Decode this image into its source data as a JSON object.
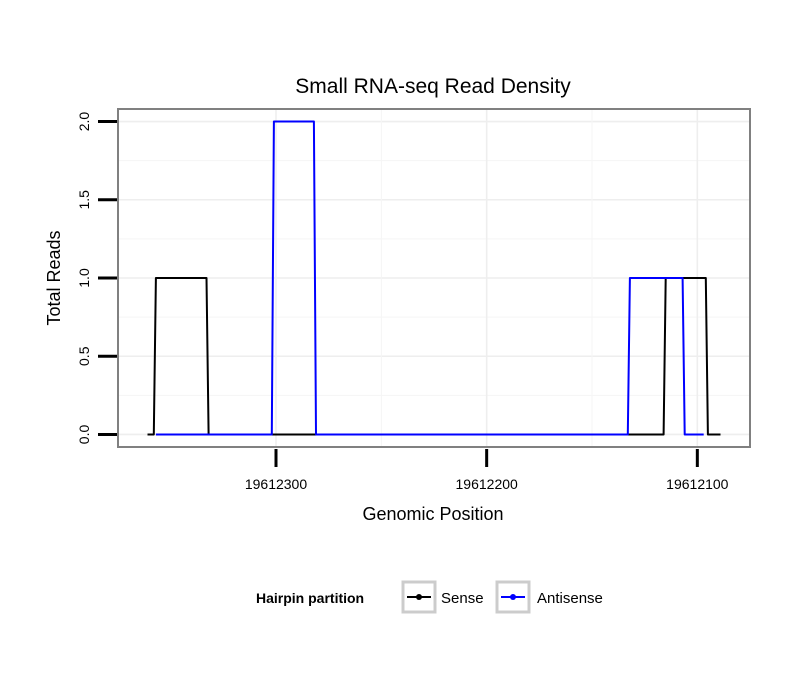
{
  "chart_data": {
    "type": "line",
    "title": "Small RNA-seq Read Density",
    "xlabel": "Genomic Position",
    "ylabel": "Total Reads",
    "x_reversed": true,
    "xlim": [
      19612375,
      19612075
    ],
    "ylim": [
      -0.08,
      2.08
    ],
    "xticks": [
      {
        "value": 19612300,
        "label": "19612300"
      },
      {
        "value": 19612200,
        "label": "19612200"
      },
      {
        "value": 19612100,
        "label": "19612100"
      }
    ],
    "yticks": [
      {
        "value": 0.0,
        "label": "0.0"
      },
      {
        "value": 0.5,
        "label": "0.5"
      },
      {
        "value": 1.0,
        "label": "1.0"
      },
      {
        "value": 1.5,
        "label": "1.5"
      },
      {
        "value": 2.0,
        "label": "2.0"
      }
    ],
    "grid": true,
    "legend": {
      "title": "Hairpin partition",
      "position": "bottom"
    },
    "series": [
      {
        "name": "Sense",
        "color": "#000000",
        "points": [
          [
            19612361,
            0
          ],
          [
            19612358,
            0
          ],
          [
            19612357,
            1
          ],
          [
            19612333,
            1
          ],
          [
            19612332,
            0
          ],
          [
            19612116,
            0
          ],
          [
            19612115,
            1
          ],
          [
            19612106,
            1
          ],
          [
            19612105,
            1
          ],
          [
            19612096,
            1
          ],
          [
            19612095,
            0
          ],
          [
            19612089,
            0
          ]
        ]
      },
      {
        "name": "Antisense",
        "color": "#0000ff",
        "points": [
          [
            19612357,
            0
          ],
          [
            19612302,
            0
          ],
          [
            19612301,
            2
          ],
          [
            19612282,
            2
          ],
          [
            19612281,
            0
          ],
          [
            19612133,
            0
          ],
          [
            19612132,
            1
          ],
          [
            19612107,
            1
          ],
          [
            19612106,
            0
          ],
          [
            19612097,
            0
          ]
        ]
      }
    ]
  }
}
